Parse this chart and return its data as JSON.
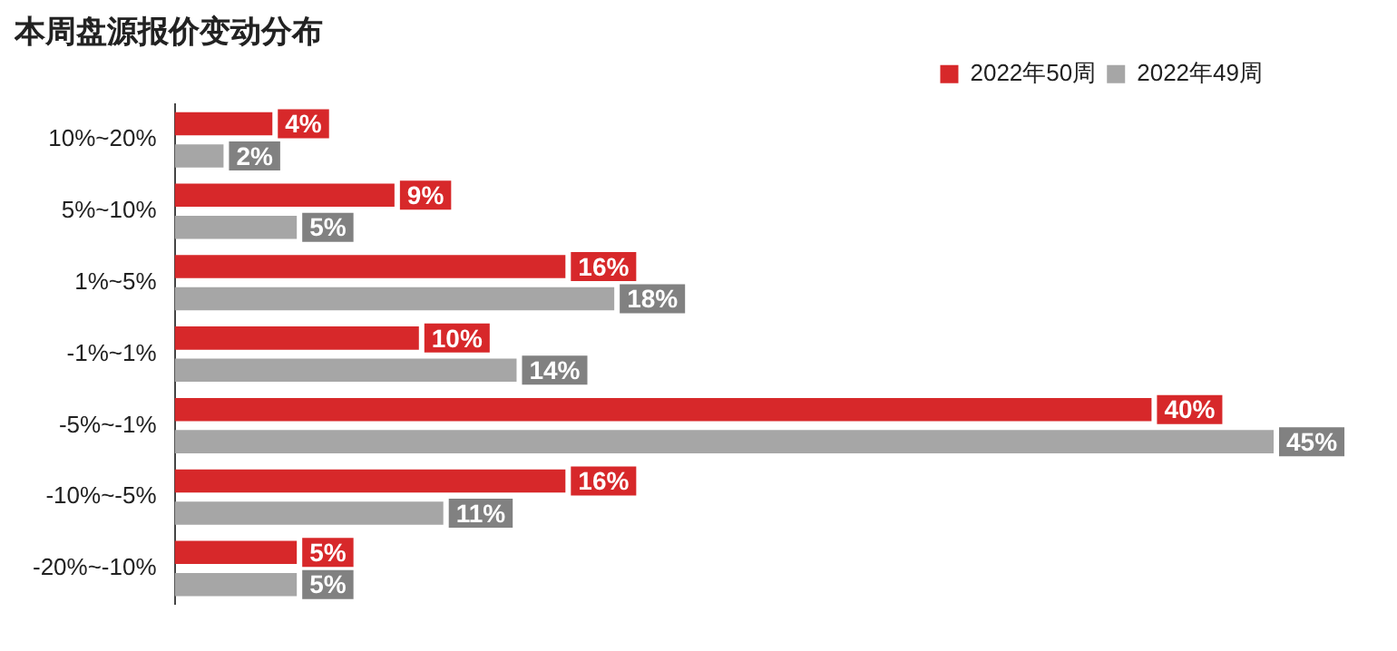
{
  "chart_data": {
    "type": "bar",
    "orientation": "horizontal",
    "title": "本周盘源报价变动分布",
    "categories": [
      "10%~20%",
      "5%~10%",
      "1%~5%",
      "-1%~1%",
      "-5%~-1%",
      "-10%~-5%",
      "-20%~-10%"
    ],
    "series": [
      {
        "name": "2022年50周",
        "color": "#d7282a",
        "values": [
          4,
          9,
          16,
          10,
          40,
          16,
          5
        ],
        "value_labels": [
          "4%",
          "9%",
          "16%",
          "10%",
          "40%",
          "16%",
          "5%"
        ]
      },
      {
        "name": "2022年49周",
        "color": "#a6a6a6",
        "values": [
          2,
          5,
          18,
          14,
          45,
          11,
          5
        ],
        "value_labels": [
          "2%",
          "5%",
          "18%",
          "14%",
          "45%",
          "11%",
          "5%"
        ]
      }
    ],
    "tick_labels": "y",
    "legend": "top right",
    "grid": false
  }
}
